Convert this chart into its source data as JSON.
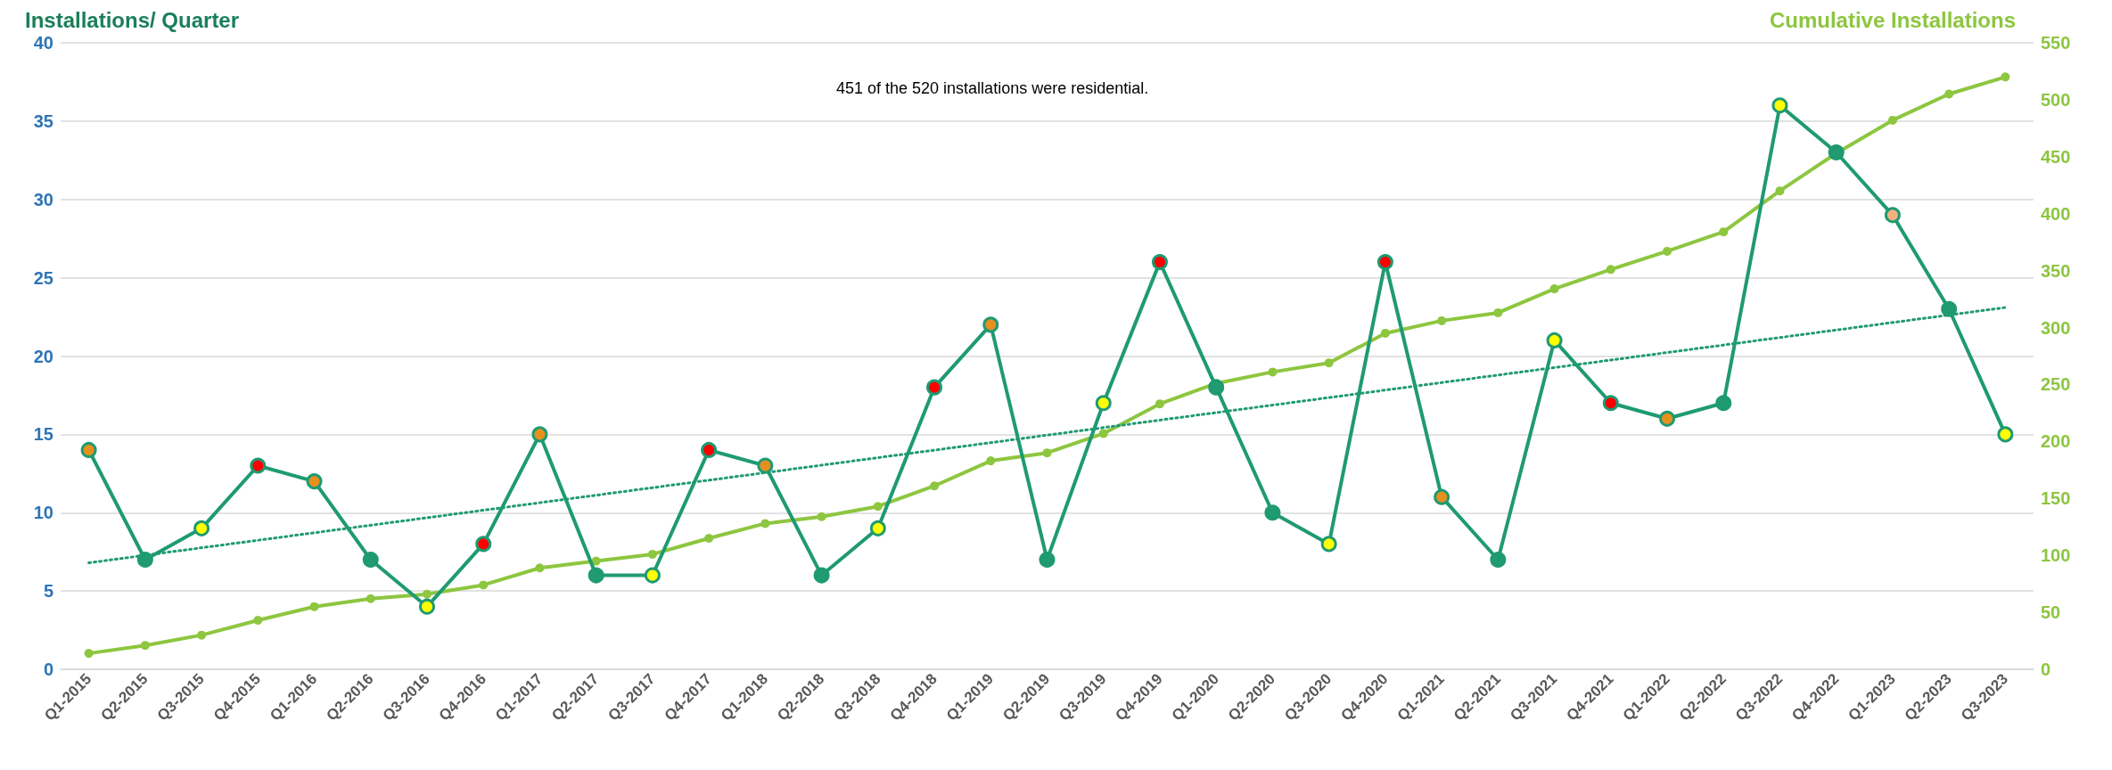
{
  "chart_data": {
    "type": "line",
    "ylabel": "Installations/ Quarter",
    "y2label": "Cumulative Installations",
    "annotations": [
      "451 of the 520 installations were residential."
    ],
    "categories": [
      "Q1-2015",
      "Q2-2015",
      "Q3-2015",
      "Q4-2015",
      "Q1-2016",
      "Q2-2016",
      "Q3-2016",
      "Q4-2016",
      "Q1-2017",
      "Q2-2017",
      "Q3-2017",
      "Q4-2017",
      "Q1-2018",
      "Q2-2018",
      "Q3-2018",
      "Q4-2018",
      "Q1-2019",
      "Q2-2019",
      "Q3-2019",
      "Q4-2019",
      "Q1-2020",
      "Q2-2020",
      "Q3-2020",
      "Q4-2020",
      "Q1-2021",
      "Q2-2021",
      "Q3-2021",
      "Q4-2021",
      "Q1-2022",
      "Q2-2022",
      "Q3-2022",
      "Q4-2022",
      "Q1-2023",
      "Q2-2023",
      "Q3-2023"
    ],
    "series": [
      {
        "color": "#1f9a72",
        "marker": "circle",
        "values": [
          14,
          7,
          9,
          13,
          12,
          7,
          4,
          8,
          15,
          6,
          6,
          14,
          13,
          6,
          9,
          18,
          22,
          7,
          17,
          26,
          18,
          10,
          8,
          26,
          11,
          7,
          21,
          17,
          16,
          17,
          36,
          33,
          29,
          23,
          15
        ],
        "colors": [
          "#e6901e",
          "#1f9a72",
          "#ffff00",
          "#ff0000",
          "#e6901e",
          "#1f9a72",
          "#ffff00",
          "#ff0000",
          "#e6901e",
          "#1f9a72",
          "#ffff00",
          "#ff0000",
          "#e6901e",
          "#1f9a72",
          "#ffff00",
          "#ff0000",
          "#e6901e",
          "#1f9a72",
          "#ffff00",
          "#ff0000",
          "#1f9a72",
          "#1f9a72",
          "#ffff00",
          "#ff0000",
          "#e6901e",
          "#1f9a72",
          "#ffff00",
          "#ff0000",
          "#e6901e",
          "#1f9a72",
          "#ffff00",
          "#1f9a72",
          "#f4b183",
          "#1f9a72",
          "#ffff00"
        ]
      },
      {
        "color": "#8dc63f",
        "marker": "circle",
        "axis": "y2",
        "values": [
          14,
          21,
          30,
          43,
          55,
          62,
          66,
          74,
          89,
          95,
          101,
          115,
          128,
          134,
          143,
          161,
          183,
          190,
          207,
          233,
          251,
          261,
          269,
          295,
          306,
          313,
          334,
          351,
          367,
          384,
          420,
          453,
          482,
          505,
          520
        ]
      },
      {
        "color": "#1f9a72",
        "marker": "none",
        "line_style": "dotted",
        "x": [
          "Q1-2015",
          "Q3-2023"
        ],
        "values": [
          6.8,
          23.1
        ]
      }
    ],
    "ylim": [
      0,
      40
    ],
    "yticks": [
      0,
      5,
      10,
      15,
      20,
      25,
      30,
      35,
      40
    ],
    "y2lim": [
      0,
      550
    ],
    "y2ticks": [
      0,
      50,
      100,
      150,
      200,
      250,
      300,
      350,
      400,
      450,
      500,
      550
    ],
    "grid": "y"
  }
}
